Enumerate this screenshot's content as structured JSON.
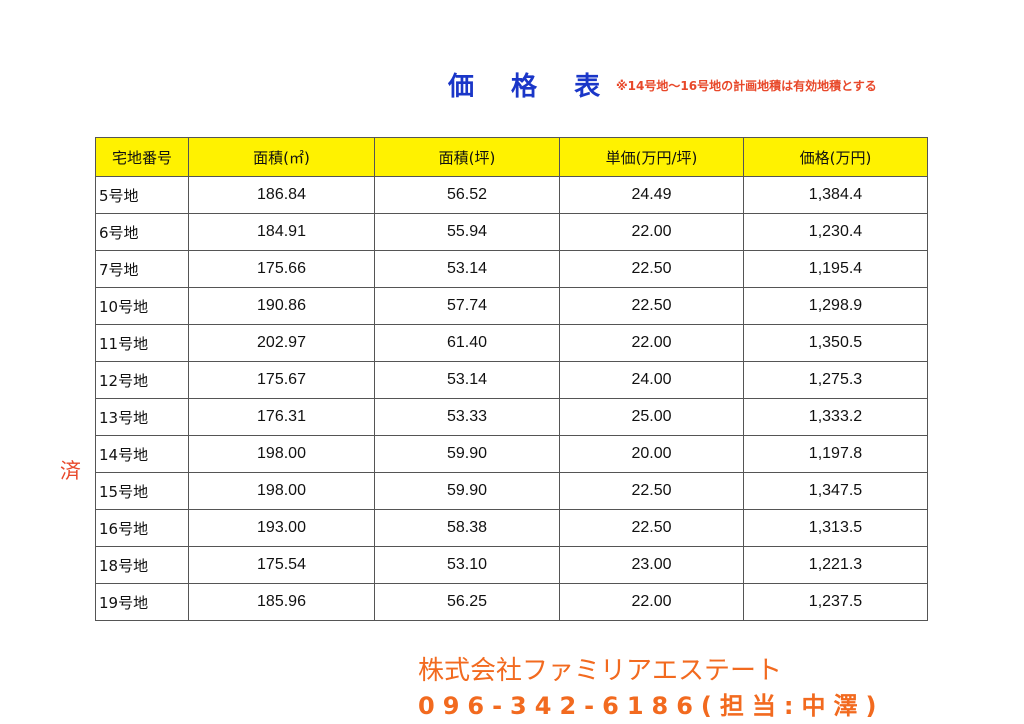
{
  "title": "価 格 表",
  "note": "※14号地～16号地の計画地積は有効地積とする",
  "sold_mark": "済",
  "headers": [
    "宅地番号",
    "面積(㎡)",
    "面積(坪)",
    "単価(万円/坪)",
    "価格(万円)"
  ],
  "rows": [
    [
      "5号地",
      "186.84",
      "56.52",
      "24.49",
      "1,384.4"
    ],
    [
      "6号地",
      "184.91",
      "55.94",
      "22.00",
      "1,230.4"
    ],
    [
      "7号地",
      "175.66",
      "53.14",
      "22.50",
      "1,195.4"
    ],
    [
      "10号地",
      "190.86",
      "57.74",
      "22.50",
      "1,298.9"
    ],
    [
      "11号地",
      "202.97",
      "61.40",
      "22.00",
      "1,350.5"
    ],
    [
      "12号地",
      "175.67",
      "53.14",
      "24.00",
      "1,275.3"
    ],
    [
      "13号地",
      "176.31",
      "53.33",
      "25.00",
      "1,333.2"
    ],
    [
      "14号地",
      "198.00",
      "59.90",
      "20.00",
      "1,197.8"
    ],
    [
      "15号地",
      "198.00",
      "59.90",
      "22.50",
      "1,347.5"
    ],
    [
      "16号地",
      "193.00",
      "58.38",
      "22.50",
      "1,313.5"
    ],
    [
      "18号地",
      "175.54",
      "53.10",
      "23.00",
      "1,221.3"
    ],
    [
      "19号地",
      "185.96",
      "56.25",
      "22.00",
      "1,237.5"
    ]
  ],
  "company": "株式会社ファミリアエステート",
  "phone": "096-342-6186(担当:中澤)",
  "colors": {
    "title": "#1a36c8",
    "note": "#e8482a",
    "header_bg": "#fff200",
    "company": "#f26a1f"
  }
}
